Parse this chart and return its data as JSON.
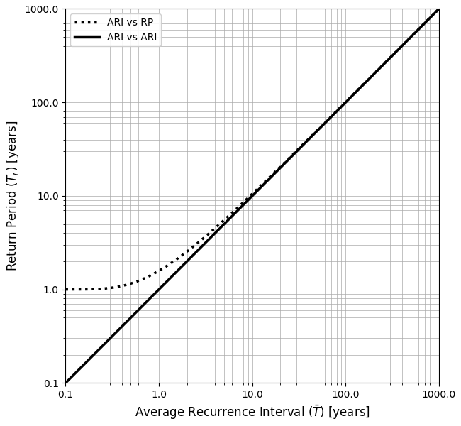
{
  "xlabel": "Average Recurrence Interval ($\\bar{T}$) [years]",
  "ylabel": "Return Period ($T_r$) [years]",
  "xlim": [
    0.1,
    1000.0
  ],
  "ylim": [
    0.1,
    1000.0
  ],
  "legend_labels": [
    "ARI vs RP",
    "ARI vs ARI"
  ],
  "line_color": "black",
  "linewidth": 2.5,
  "dotted_linewidth": 2.5,
  "grid_color": "#aaaaaa",
  "grid_linewidth": 0.5,
  "figsize": [
    6.5,
    6.0
  ],
  "dpi": 100
}
